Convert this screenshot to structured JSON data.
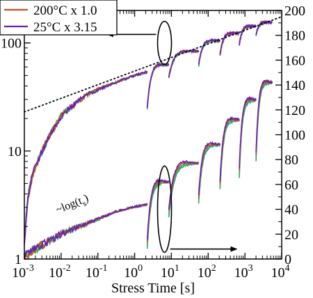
{
  "chart_data": {
    "type": "line",
    "xlabel": "Stress Time  [s]",
    "x_scale": "log",
    "xlim": [
      0.001,
      10000
    ],
    "x_ticks": [
      {
        "value": 0.001,
        "mant": "10",
        "exp": "-3"
      },
      {
        "value": 0.01,
        "mant": "10",
        "exp": "-2"
      },
      {
        "value": 0.1,
        "mant": "10",
        "exp": "-1"
      },
      {
        "value": 1,
        "mant": "10",
        "exp": "0"
      },
      {
        "value": 10,
        "mant": "10",
        "exp": "1"
      },
      {
        "value": 100,
        "mant": "10",
        "exp": "2"
      },
      {
        "value": 1000,
        "mant": "10",
        "exp": "3"
      },
      {
        "value": 10000,
        "mant": "10",
        "exp": "4"
      }
    ],
    "y_left_scale": "log",
    "y_left_lim": [
      1,
      200
    ],
    "y_left_ticks": [
      {
        "value": 1,
        "label": "1"
      },
      {
        "value": 10,
        "label": "10"
      },
      {
        "value": 100,
        "label": "100"
      }
    ],
    "y_right_scale": "linear",
    "y_right_lim": [
      0,
      200
    ],
    "y_right_ticks": [
      {
        "value": 0,
        "label": "0"
      },
      {
        "value": 20,
        "label": "20"
      },
      {
        "value": 40,
        "label": "40"
      },
      {
        "value": 60,
        "label": "60"
      },
      {
        "value": 80,
        "label": "80"
      },
      {
        "value": 100,
        "label": "100"
      },
      {
        "value": 120,
        "label": "120"
      },
      {
        "value": 140,
        "label": "140"
      },
      {
        "value": 160,
        "label": "160"
      },
      {
        "value": 180,
        "label": "180"
      },
      {
        "value": 200,
        "label": "200"
      }
    ],
    "legend_placement": "top-left",
    "grid": false,
    "series": [
      {
        "name": "200°C x 1.0",
        "color": "#c8501e"
      },
      {
        "name": "25°C x 3.15",
        "color": "#6a1fb0"
      }
    ],
    "recovery_colors": [
      "#2aa0a0",
      "#3fae3f"
    ],
    "upper_curves_left_axis": {
      "axis": "left",
      "points": [
        [
          0.001,
          1.3
        ],
        [
          0.0013,
          4.0
        ],
        [
          0.0017,
          6.0
        ],
        [
          0.0025,
          8.5
        ],
        [
          0.004,
          12
        ],
        [
          0.007,
          17
        ],
        [
          0.01,
          21
        ],
        [
          0.02,
          26
        ],
        [
          0.05,
          33
        ],
        [
          0.1,
          37
        ],
        [
          0.3,
          43
        ],
        [
          0.7,
          48
        ],
        [
          1.5,
          52
        ],
        [
          2.2,
          54
        ]
      ],
      "segments": [
        {
          "t_start": 2.2,
          "t_end": 8.5,
          "v_start": 25,
          "v_end": 63
        },
        {
          "t_start": 8.5,
          "t_end": 55,
          "v_start": 48,
          "v_end": 84
        },
        {
          "t_start": 55,
          "t_end": 210,
          "v_start": 62,
          "v_end": 105
        },
        {
          "t_start": 210,
          "t_end": 700,
          "v_start": 77,
          "v_end": 123
        },
        {
          "t_start": 700,
          "t_end": 2000,
          "v_start": 95,
          "v_end": 143
        },
        {
          "t_start": 2000,
          "t_end": 5500,
          "v_start": 118,
          "v_end": 155
        }
      ]
    },
    "lower_curves_right_axis": {
      "axis": "right",
      "points": [
        [
          0.001,
          2
        ],
        [
          0.002,
          8
        ],
        [
          0.005,
          15
        ],
        [
          0.01,
          20
        ],
        [
          0.03,
          26
        ],
        [
          0.1,
          32
        ],
        [
          0.3,
          38
        ],
        [
          1,
          42
        ],
        [
          2.2,
          44
        ]
      ],
      "segments": [
        {
          "t_start": 2.2,
          "t_end": 8.5,
          "v_start": 12,
          "v_end": 62
        },
        {
          "t_start": 8.5,
          "t_end": 55,
          "v_start": 37,
          "v_end": 77
        },
        {
          "t_start": 55,
          "t_end": 210,
          "v_start": 48,
          "v_end": 92
        },
        {
          "t_start": 210,
          "t_end": 700,
          "v_start": 59,
          "v_end": 112
        },
        {
          "t_start": 700,
          "t_end": 2000,
          "v_start": 69,
          "v_end": 128
        },
        {
          "t_start": 2000,
          "t_end": 5500,
          "v_start": 82,
          "v_end": 142
        }
      ]
    },
    "reference_line": {
      "axis": "left",
      "points": [
        [
          0.001,
          23
        ],
        [
          10000,
          175
        ]
      ],
      "style": "dotted"
    },
    "annotation": {
      "text_main": "~log(t",
      "text_sub": "s",
      "text_end": ")",
      "t": 0.028,
      "right_value": 44
    },
    "marker_upper": {
      "t": 6.5,
      "left_value": 100,
      "arrow_to_t": 0.18,
      "direction": "left"
    },
    "marker_lower": {
      "t": 6.5,
      "right_value": 30,
      "arrow_to_t": 600,
      "direction": "right"
    }
  }
}
